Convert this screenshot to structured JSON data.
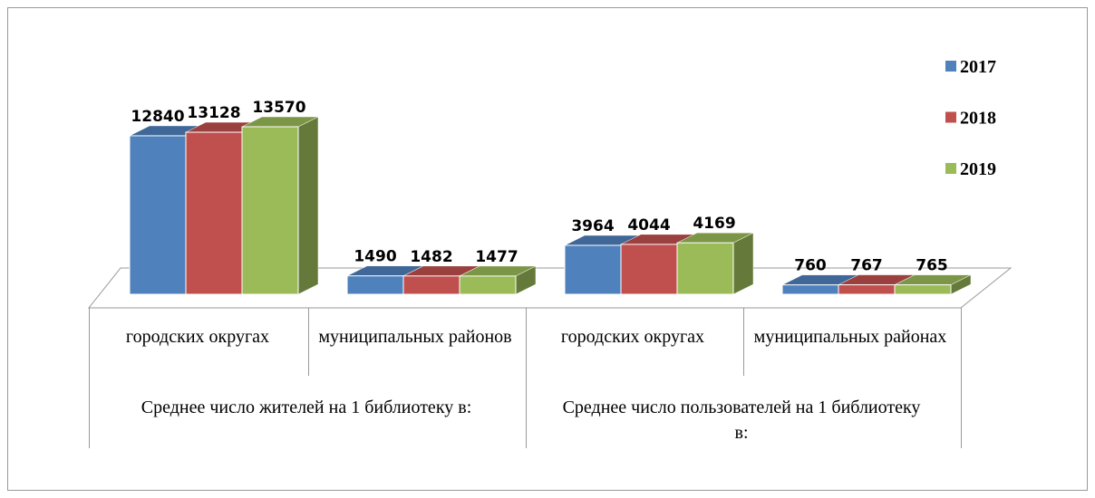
{
  "chart_data": {
    "type": "bar3d",
    "groups": [
      {
        "name": "Среднее число жителей на 1 библиотеку в:",
        "categories": [
          "городских округах",
          "муниципальных районов"
        ]
      },
      {
        "name": "Среднее число пользователей на 1 библиотеку в:",
        "categories": [
          "городских округах",
          "муниципальных районах"
        ]
      }
    ],
    "series": [
      {
        "name": "2017",
        "color": "#4f81bd",
        "values": [
          12840,
          1490,
          3964,
          760
        ]
      },
      {
        "name": "2018",
        "color": "#c0504d",
        "values": [
          13128,
          1482,
          4044,
          767
        ]
      },
      {
        "name": "2019",
        "color": "#9bbb59",
        "values": [
          13570,
          1477,
          4169,
          765
        ]
      }
    ],
    "legend": "right"
  }
}
